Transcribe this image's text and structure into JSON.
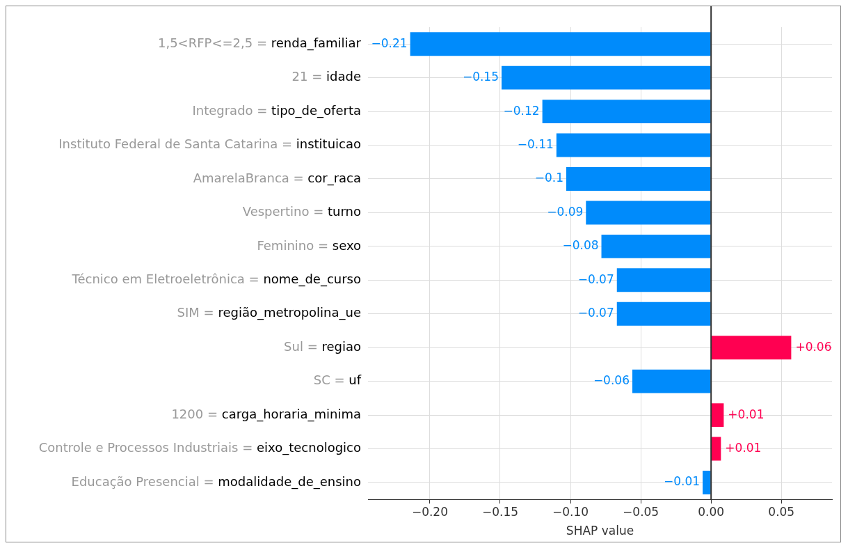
{
  "chart_data": {
    "type": "bar",
    "orientation": "horizontal",
    "xlabel": "SHAP value",
    "categories": [
      "1,5<RFP<=2,5 = renda_familiar",
      "21 = idade",
      "Integrado = tipo_de_oferta",
      "Instituto Federal de Santa Catarina = instituicao",
      "AmarelaBranca = cor_raca",
      "Vespertino = turno",
      "Feminino = sexo",
      "Técnico em Eletroeletrônica = nome_de_curso",
      "SIM = região_metropolina_ue",
      "Sul = regiao",
      "SC = uf",
      "1200 = carga_horaria_minima",
      "Controle e Processos Industriais = eixo_tecnologico",
      "Educação Presencial = modalidade_de_ensino"
    ],
    "values": [
      -0.214,
      -0.149,
      -0.12,
      -0.11,
      -0.103,
      -0.089,
      -0.078,
      -0.067,
      -0.067,
      0.057,
      -0.056,
      0.009,
      0.007,
      -0.006
    ],
    "value_labels": [
      "−0.21",
      "−0.15",
      "−0.12",
      "−0.11",
      "−0.1",
      "−0.09",
      "−0.08",
      "−0.07",
      "−0.07",
      "+0.06",
      "−0.06",
      "+0.01",
      "+0.01",
      "−0.01"
    ],
    "colors": [
      "#008bfb",
      "#008bfb",
      "#008bfb",
      "#008bfb",
      "#008bfb",
      "#008bfb",
      "#008bfb",
      "#008bfb",
      "#008bfb",
      "#ff0051",
      "#008bfb",
      "#ff0051",
      "#ff0051",
      "#008bfb"
    ],
    "xlim": [
      -0.244,
      0.086
    ],
    "xticks": [
      {
        "value": -0.2,
        "label": "−0.20"
      },
      {
        "value": -0.15,
        "label": "−0.15"
      },
      {
        "value": -0.1,
        "label": "−0.10"
      },
      {
        "value": -0.05,
        "label": "−0.05"
      },
      {
        "value": 0,
        "label": "0.00"
      },
      {
        "value": 0.05,
        "label": "0.05"
      }
    ],
    "grid": true,
    "ref_lines": [
      {
        "axis": "x",
        "value": 0,
        "color": "#333333"
      }
    ]
  }
}
